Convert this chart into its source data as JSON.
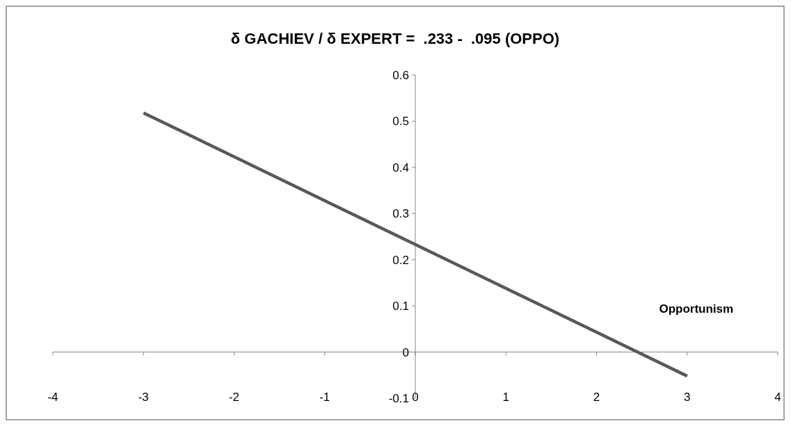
{
  "chart_data": {
    "type": "line",
    "title": "δ GACHIEV / δ EXPERT =  .233 -  .095 (OPPO)",
    "xlabel": "Opportunism",
    "x": [
      -3,
      3
    ],
    "series": [
      {
        "color": "#595959",
        "values": [
          0.518,
          -0.052
        ]
      }
    ],
    "xlim": [
      -4,
      4
    ],
    "xticks": [
      -4,
      -3,
      -2,
      -1,
      0,
      1,
      2,
      3,
      4
    ],
    "ylim": [
      -0.1,
      0.6
    ],
    "yticks": [
      -0.1,
      0,
      0.1,
      0.2,
      0.3,
      0.4,
      0.5,
      0.6
    ],
    "marker": "none",
    "line_style": "solid"
  }
}
